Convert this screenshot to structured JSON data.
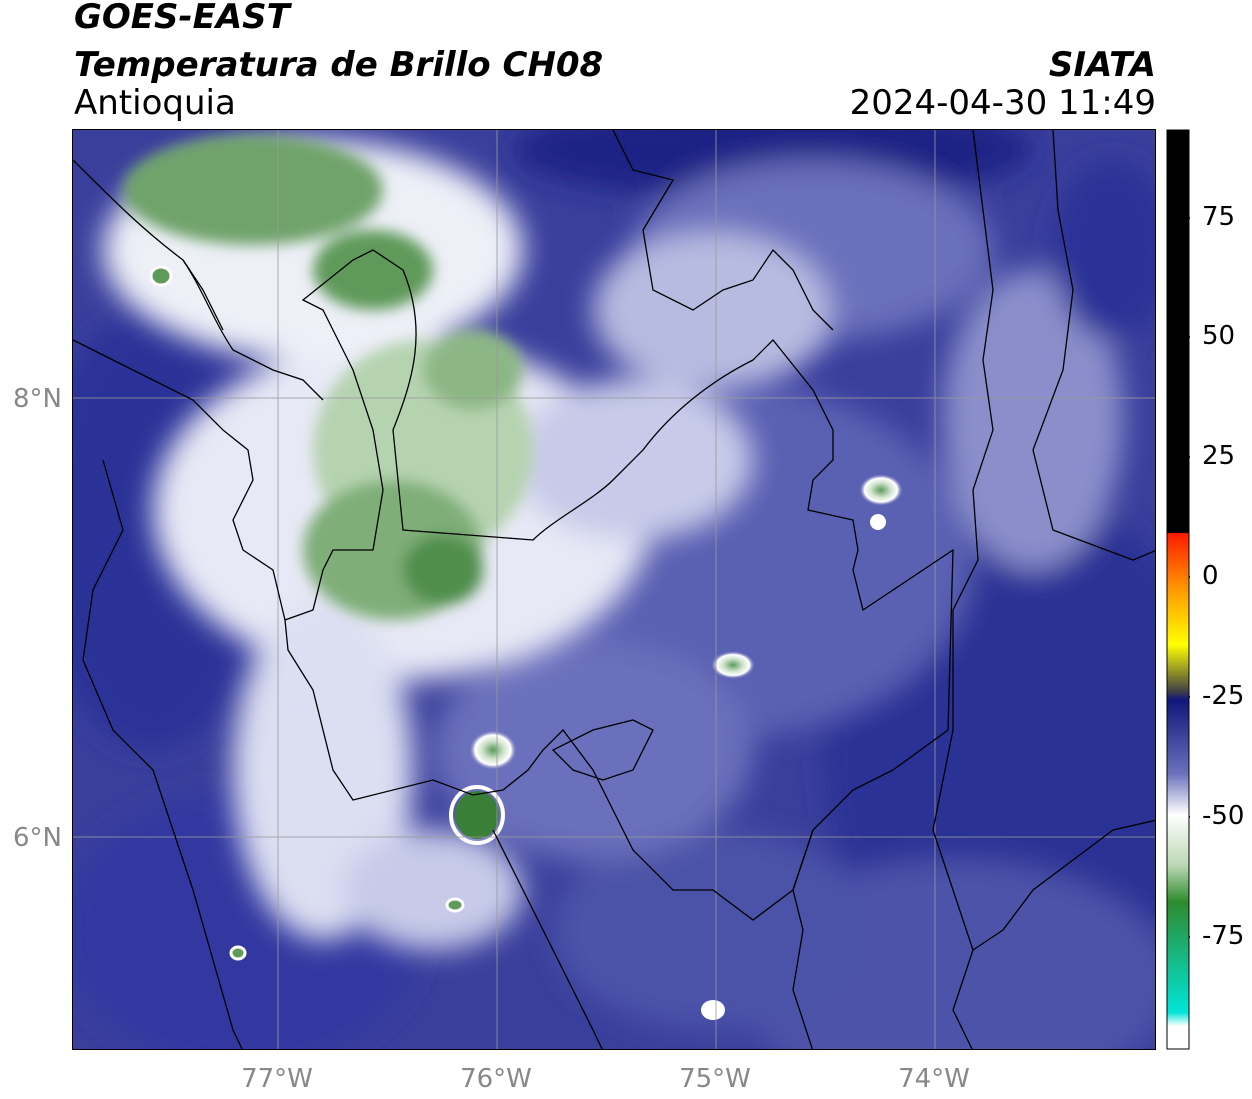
{
  "header": {
    "satellite": "GOES-EAST",
    "product": "Temperatura de Brillo CH08",
    "region": "Antioquia",
    "organization": "SIATA",
    "timestamp": "2024-04-30 11:49"
  },
  "map": {
    "latitude_labels": [
      "8°N",
      "6°N"
    ],
    "longitude_labels": [
      "77°W",
      "76°W",
      "75°W",
      "74°W"
    ],
    "grid": true
  },
  "colorbar": {
    "tick_labels": [
      "75",
      "50",
      "25",
      "0",
      "-25",
      "-50",
      "-75"
    ],
    "range": [
      -95,
      90
    ],
    "colors": {
      "warm_above_10": "#000000",
      "red": "#ff1a00",
      "orange": "#ff9900",
      "yellow": "#ffff00",
      "navy": "#10177a",
      "white": "#ffffff",
      "green": "#2e8b2e",
      "teal": "#00e5d8"
    }
  }
}
